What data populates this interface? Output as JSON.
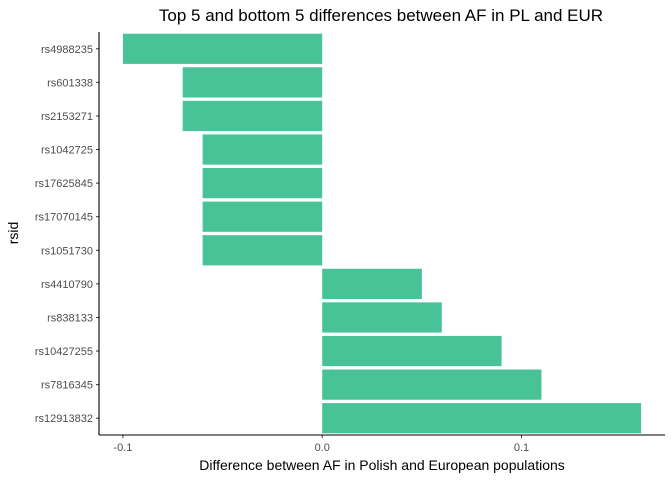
{
  "chart_data": {
    "type": "bar",
    "orientation": "horizontal",
    "title": "Top 5 and bottom 5 differences between AF in PL and EUR",
    "xlabel": "Difference between AF in Polish and European populations",
    "ylabel": "rsid",
    "categories": [
      "rs4988235",
      "rs601338",
      "rs2153271",
      "rs1042725",
      "rs17625845",
      "rs17070145",
      "rs1051730",
      "rs4410790",
      "rs838133",
      "rs10427255",
      "rs7816345",
      "rs12913832"
    ],
    "values": [
      -0.1,
      -0.07,
      -0.07,
      -0.06,
      -0.06,
      -0.06,
      -0.06,
      0.05,
      0.06,
      0.09,
      0.11,
      0.16
    ],
    "xlim": [
      -0.112,
      0.172
    ],
    "xticks": [
      -0.1,
      0.0,
      0.1
    ],
    "xtick_labels": [
      "-0.1",
      "0.0",
      "0.1"
    ],
    "grid": false,
    "bar_color": "#48C297",
    "axis_color": "#000000",
    "background": "#ffffff"
  }
}
